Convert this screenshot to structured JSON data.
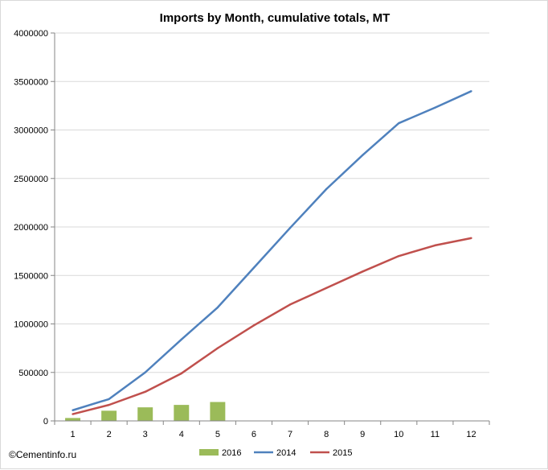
{
  "chart_data": {
    "type": "bar+line",
    "title": "Imports by Month, cumulative totals, MT",
    "xlabel": "",
    "ylabel": "",
    "categories": [
      "1",
      "2",
      "3",
      "4",
      "5",
      "6",
      "7",
      "8",
      "9",
      "10",
      "11",
      "12"
    ],
    "ylim": [
      0,
      4000000
    ],
    "ytick_step": 500000,
    "yticks": [
      "0",
      "500000",
      "1000000",
      "1500000",
      "2000000",
      "2500000",
      "3000000",
      "3500000",
      "4000000"
    ],
    "grid": true,
    "legend_position": "bottom",
    "series": [
      {
        "name": "2016",
        "kind": "bar",
        "color": "#9bbb59",
        "values": [
          30000,
          105000,
          140000,
          165000,
          195000,
          null,
          null,
          null,
          null,
          null,
          null,
          null
        ]
      },
      {
        "name": "2014",
        "kind": "line",
        "color": "#4f81bd",
        "values": [
          110000,
          225000,
          500000,
          840000,
          1170000,
          1580000,
          1990000,
          2390000,
          2740000,
          3070000,
          3230000,
          3400000
        ]
      },
      {
        "name": "2015",
        "kind": "line",
        "color": "#c0504d",
        "values": [
          70000,
          165000,
          300000,
          490000,
          750000,
          985000,
          1200000,
          1370000,
          1540000,
          1700000,
          1810000,
          1885000
        ]
      }
    ]
  },
  "credit": "©Cementinfo.ru"
}
